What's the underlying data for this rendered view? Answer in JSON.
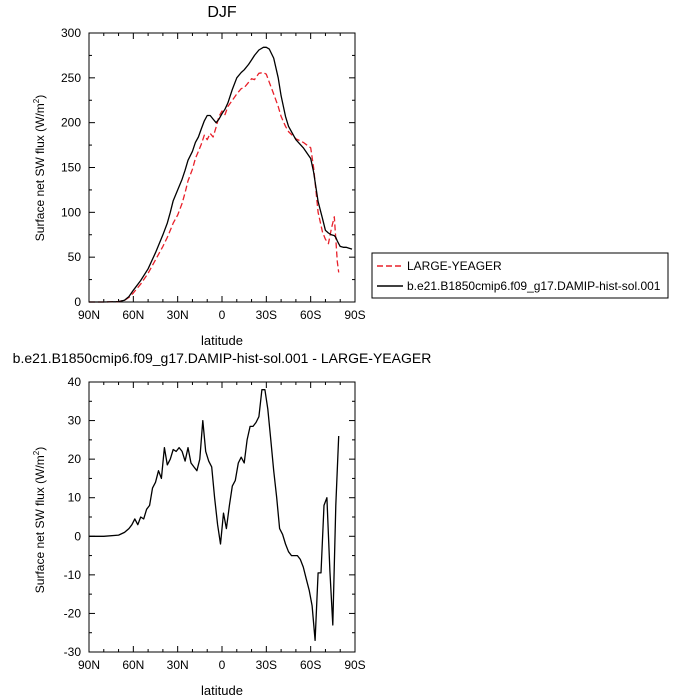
{
  "chart_data": [
    {
      "type": "line",
      "title": "DJF",
      "xlabel": "latitude",
      "ylabel": "Surface net SW flux (W/m",
      "ylabel_sup": "2",
      "ylabel_end": ")",
      "xlim": [
        90,
        -90
      ],
      "ylim": [
        0,
        300
      ],
      "x_ticks": [
        90,
        60,
        30,
        0,
        -30,
        -60,
        -90
      ],
      "x_tick_labels": [
        "90N",
        "60N",
        "30N",
        "0",
        "30S",
        "60S",
        "90S"
      ],
      "y_ticks": [
        0,
        50,
        100,
        150,
        200,
        250,
        300
      ],
      "y_tick_labels": [
        "0",
        "50",
        "100",
        "150",
        "200",
        "250",
        "300"
      ],
      "legend_position": "right",
      "series": [
        {
          "name": "LARGE-YEAGER",
          "color": "#e8202a",
          "dash": true,
          "x": [
            90,
            80,
            70,
            66,
            63,
            60,
            55,
            50,
            45,
            40,
            37,
            35,
            33,
            30,
            27,
            25,
            23,
            20,
            18,
            16,
            14,
            12,
            10,
            8,
            6,
            4,
            2,
            0,
            -2,
            -4,
            -7,
            -10,
            -13,
            -15,
            -18,
            -20,
            -22,
            -25,
            -28,
            -30,
            -32,
            -35,
            -38,
            -40,
            -43,
            -45,
            -50,
            -55,
            -60,
            -62,
            -65,
            -68,
            -70,
            -72,
            -74,
            -76,
            -77,
            -78,
            -79
          ],
          "y": [
            0,
            0,
            0.5,
            2,
            5,
            10,
            20,
            32,
            47,
            62,
            72,
            80,
            88,
            97,
            110,
            122,
            135,
            148,
            160,
            168,
            176,
            186,
            181,
            188,
            184,
            195,
            207,
            213,
            209,
            218,
            225,
            232,
            238,
            239,
            245,
            249,
            248,
            255,
            256,
            254,
            245,
            232,
            218,
            207,
            196,
            190,
            182,
            178,
            172,
            150,
            100,
            78,
            70,
            65,
            82,
            95,
            70,
            45,
            33
          ]
        },
        {
          "name": "b.e21.B1850cmip6.f09_g17.DAMIP-hist-sol.001",
          "color": "#000000",
          "dash": false,
          "x": [
            90,
            80,
            70,
            66,
            63,
            60,
            55,
            50,
            45,
            40,
            37,
            35,
            33,
            30,
            27,
            25,
            23,
            20,
            18,
            16,
            14,
            12,
            10,
            8,
            6,
            4,
            2,
            0,
            -2,
            -4,
            -7,
            -10,
            -13,
            -15,
            -18,
            -20,
            -22,
            -25,
            -28,
            -30,
            -32,
            -35,
            -38,
            -40,
            -43,
            -45,
            -50,
            -55,
            -60,
            -62,
            -65,
            -68,
            -70,
            -72,
            -74,
            -76,
            -77,
            -78,
            -79,
            -80,
            -82,
            -84,
            -86,
            -88
          ],
          "y": [
            0,
            0,
            0.5,
            2,
            6,
            13,
            24,
            37,
            55,
            75,
            88,
            100,
            113,
            125,
            137,
            147,
            158,
            168,
            178,
            184,
            193,
            202,
            208,
            208,
            204,
            200,
            204,
            210,
            215,
            222,
            237,
            250,
            256,
            259,
            265,
            270,
            275,
            281,
            284,
            284,
            282,
            272,
            250,
            230,
            207,
            196,
            181,
            172,
            160,
            145,
            112,
            93,
            80,
            77,
            75,
            74,
            72,
            68,
            65,
            62,
            61,
            61,
            60,
            59
          ]
        }
      ]
    },
    {
      "type": "line",
      "title": "b.e21.B1850cmip6.f09_g17.DAMIP-hist-sol.001 - LARGE-YEAGER",
      "xlabel": "latitude",
      "ylabel": "Surface net SW flux (W/m",
      "ylabel_sup": "2",
      "ylabel_end": ")",
      "xlim": [
        90,
        -90
      ],
      "ylim": [
        -30,
        40
      ],
      "x_ticks": [
        90,
        60,
        30,
        0,
        -30,
        -60,
        -90
      ],
      "x_tick_labels": [
        "90N",
        "60N",
        "30N",
        "0",
        "30S",
        "60S",
        "90S"
      ],
      "y_ticks": [
        -30,
        -20,
        -10,
        0,
        10,
        20,
        30,
        40
      ],
      "y_tick_labels": [
        "-30",
        "-20",
        "-10",
        "0",
        "10",
        "20",
        "30",
        "40"
      ],
      "series": [
        {
          "color": "#000000",
          "dash": false,
          "x": [
            90,
            80,
            70,
            66,
            63,
            61,
            59,
            57,
            55,
            53,
            51,
            49,
            47,
            45,
            43,
            41,
            39,
            37,
            35,
            33,
            31,
            29,
            27,
            25,
            23,
            21,
            19,
            17,
            15,
            13,
            11,
            9,
            7,
            5,
            3,
            1,
            -1,
            -3,
            -5,
            -7,
            -9,
            -11,
            -13,
            -15,
            -17,
            -19,
            -21,
            -23,
            -25,
            -27,
            -29,
            -31,
            -33,
            -35,
            -37,
            -39,
            -41,
            -43,
            -45,
            -47,
            -49,
            -51,
            -53,
            -55,
            -57,
            -59,
            -61,
            -63,
            -65,
            -67,
            -69,
            -71,
            -73,
            -75,
            -77,
            -79
          ],
          "y": [
            0,
            0,
            0.3,
            1,
            2,
            3,
            4.5,
            3,
            5,
            4.5,
            7,
            8,
            12.5,
            14,
            17,
            15,
            23,
            18.5,
            20,
            22.5,
            22,
            23,
            22,
            19.5,
            23,
            19,
            18,
            17,
            20,
            30,
            22,
            19.5,
            18,
            10,
            3,
            -2,
            6,
            2,
            8,
            13,
            14.5,
            19,
            20.5,
            19,
            25,
            28.5,
            28.5,
            29.5,
            31,
            38,
            38,
            33,
            25,
            17,
            10,
            2,
            0.5,
            -2,
            -4,
            -5,
            -5,
            -5,
            -6,
            -8,
            -11,
            -14,
            -18,
            -27,
            -9.5,
            -9.5,
            8,
            10,
            -9,
            -23,
            8,
            26
          ]
        }
      ]
    }
  ]
}
